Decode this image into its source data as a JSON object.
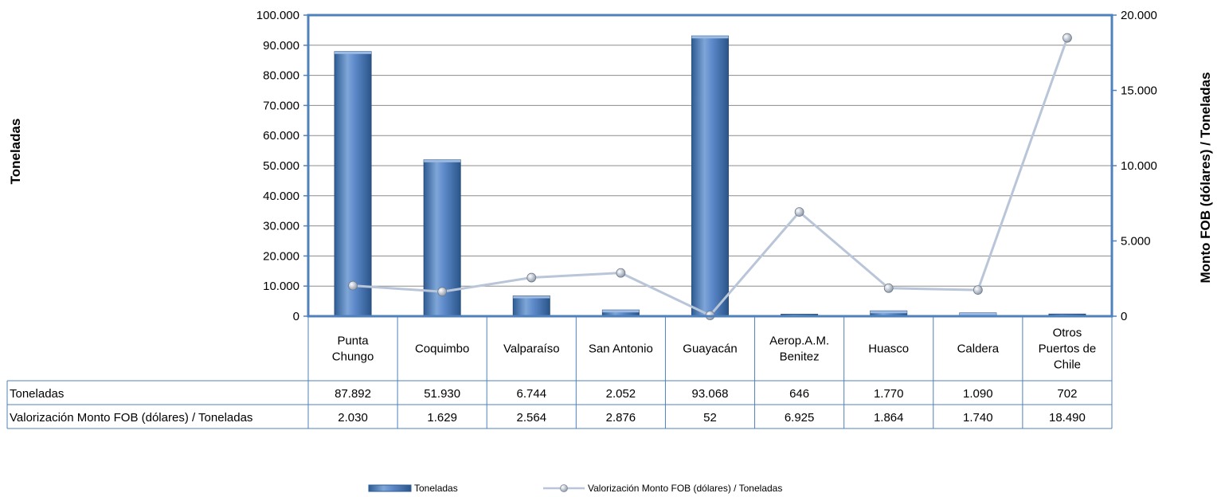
{
  "chart_data": {
    "type": "bar",
    "categories": [
      [
        "Punta",
        "Chungo"
      ],
      [
        "Coquimbo"
      ],
      [
        "Valparaíso"
      ],
      [
        "San Antonio"
      ],
      [
        "Guayacán"
      ],
      [
        "Aerop.A.M.",
        "Benitez"
      ],
      [
        "Huasco"
      ],
      [
        "Caldera"
      ],
      [
        "Otros",
        "Puertos de",
        "Chile"
      ]
    ],
    "series": [
      {
        "name": "Toneladas",
        "type": "bar",
        "axis": "left",
        "values": [
          87892,
          51930,
          6744,
          2052,
          93068,
          646,
          1770,
          1090,
          702
        ],
        "table_labels": [
          "87.892",
          "51.930",
          "6.744",
          "2.052",
          "93.068",
          "646",
          "1.770",
          "1.090",
          "702"
        ],
        "color": "#4F81BD"
      },
      {
        "name": "Valorización Monto FOB (dólares) / Toneladas",
        "type": "line",
        "axis": "right",
        "values": [
          2030,
          1629,
          2564,
          2876,
          52,
          6925,
          1864,
          1740,
          18490
        ],
        "table_labels": [
          "2.030",
          "1.629",
          "2.564",
          "2.876",
          "52",
          "6.925",
          "1.864",
          "1.740",
          "18.490"
        ],
        "color": "#B9C5D8"
      }
    ],
    "ylabel_left": "Toneladas",
    "ylabel_right": "Monto FOB (dólares) / Toneladas",
    "ylim_left": [
      0,
      100000
    ],
    "ylim_right": [
      0,
      20000
    ],
    "yticks_left": [
      "0",
      "10.000",
      "20.000",
      "30.000",
      "40.000",
      "50.000",
      "60.000",
      "70.000",
      "80.000",
      "90.000",
      "100.000"
    ],
    "yticks_right": [
      "0",
      "5.000",
      "10.000",
      "15.000",
      "20.000"
    ],
    "grid": true,
    "legend_position": "bottom",
    "data_table": true
  }
}
